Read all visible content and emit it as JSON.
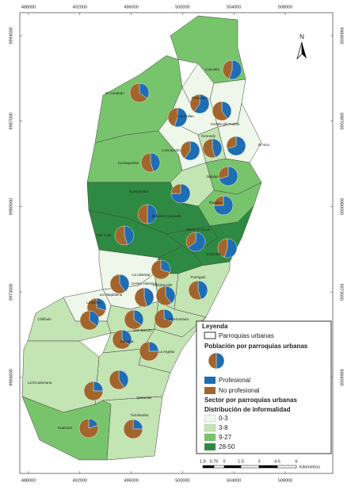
{
  "map": {
    "x_ticks": [
      488000,
      492000,
      496000,
      500000,
      504000,
      508000
    ],
    "y_ticks": [
      9994000,
      9987000,
      9980000,
      9973000,
      9966000
    ],
    "north": "N",
    "parishes": [
      {
        "name": "Carcelén",
        "profesional": 55,
        "no_profesional": 45,
        "informality": "9-27"
      },
      {
        "name": "El Condado",
        "profesional": 35,
        "no_profesional": 65,
        "informality": "9-27"
      },
      {
        "name": "Ponceano",
        "profesional": 60,
        "no_profesional": 40,
        "informality": "0-3"
      },
      {
        "name": "Comité del Pueblo",
        "profesional": 40,
        "no_profesional": 60,
        "informality": "0-3"
      },
      {
        "name": "Cotocollao",
        "profesional": 55,
        "no_profesional": 45,
        "informality": "0-3"
      },
      {
        "name": "Kennedy",
        "profesional": 45,
        "no_profesional": 55,
        "informality": "3-8"
      },
      {
        "name": "El Inca",
        "profesional": 70,
        "no_profesional": 30,
        "informality": "0-3"
      },
      {
        "name": "Concepción",
        "profesional": 60,
        "no_profesional": 40,
        "informality": "0-3"
      },
      {
        "name": "Cochapamba",
        "profesional": 45,
        "no_profesional": 55,
        "informality": "9-27"
      },
      {
        "name": "Jipijapa",
        "profesional": 70,
        "no_profesional": 30,
        "informality": "9-27"
      },
      {
        "name": "Rumipamba",
        "profesional": 75,
        "no_profesional": 25,
        "informality": "3-8"
      },
      {
        "name": "Iñaquito",
        "profesional": 75,
        "no_profesional": 25,
        "informality": "9-27"
      },
      {
        "name": "Belisario Quevedo",
        "profesional": 50,
        "no_profesional": 50,
        "informality": "28-50"
      },
      {
        "name": "San Juan",
        "profesional": 45,
        "no_profesional": 55,
        "informality": "28-50"
      },
      {
        "name": "Mariscal Sucre",
        "profesional": 65,
        "no_profesional": 35,
        "informality": "28-50"
      },
      {
        "name": "Itchimbía",
        "profesional": 55,
        "no_profesional": 45,
        "informality": "28-50"
      },
      {
        "name": "Centro Histórico",
        "profesional": 30,
        "no_profesional": 70,
        "informality": "28-50"
      },
      {
        "name": "Puengasí",
        "profesional": 45,
        "no_profesional": 55,
        "informality": "3-8"
      },
      {
        "name": "La Libertad",
        "profesional": 40,
        "no_profesional": 60,
        "informality": "0-3"
      },
      {
        "name": "La Magdalena",
        "profesional": 45,
        "no_profesional": 55,
        "informality": "0-3"
      },
      {
        "name": "Chimbacalle",
        "profesional": 40,
        "no_profesional": 60,
        "informality": "3-8"
      },
      {
        "name": "La Mena",
        "profesional": 30,
        "no_profesional": 70,
        "informality": "0-3"
      },
      {
        "name": "Chilibulo",
        "profesional": 35,
        "no_profesional": 65,
        "informality": "3-8"
      },
      {
        "name": "San Bartolo",
        "profesional": 35,
        "no_profesional": 65,
        "informality": "3-8"
      },
      {
        "name": "La Ferroviaria",
        "profesional": 30,
        "no_profesional": 70,
        "informality": "3-8"
      },
      {
        "name": "Solanda",
        "profesional": 35,
        "no_profesional": 65,
        "informality": "3-8"
      },
      {
        "name": "La Argelia",
        "profesional": 25,
        "no_profesional": 75,
        "informality": "3-8"
      },
      {
        "name": "La Ecuatoriana",
        "profesional": 25,
        "no_profesional": 75,
        "informality": "3-8"
      },
      {
        "name": "Quitumbe",
        "profesional": 40,
        "no_profesional": 60,
        "informality": "3-8"
      },
      {
        "name": "Guamaní",
        "profesional": 20,
        "no_profesional": 80,
        "informality": "9-27"
      },
      {
        "name": "Turubamba",
        "profesional": 25,
        "no_profesional": 75,
        "informality": "3-8"
      }
    ],
    "legend": {
      "title": "Leyenda",
      "boundary": "Parroquias urbanas",
      "population_title": "Población por parroquias urbanas",
      "population_items": [
        {
          "label": "Profesional",
          "color": "#1f6db3"
        },
        {
          "label": "No profesional",
          "color": "#a3652b"
        }
      ],
      "sector_title": "Sector por parroquias urbanas",
      "informality_title": "Distribución de informalidad",
      "classes": [
        {
          "label": "0-3",
          "color": "#eef7e9"
        },
        {
          "label": "3-8",
          "color": "#c3e4b3"
        },
        {
          "label": "9-27",
          "color": "#78c46c"
        },
        {
          "label": "28-50",
          "color": "#2e8a42"
        }
      ]
    },
    "scale": {
      "labels": [
        1.5,
        0.75,
        0,
        1.5,
        3,
        4.5,
        6
      ],
      "unit": "Kilómetros"
    }
  }
}
